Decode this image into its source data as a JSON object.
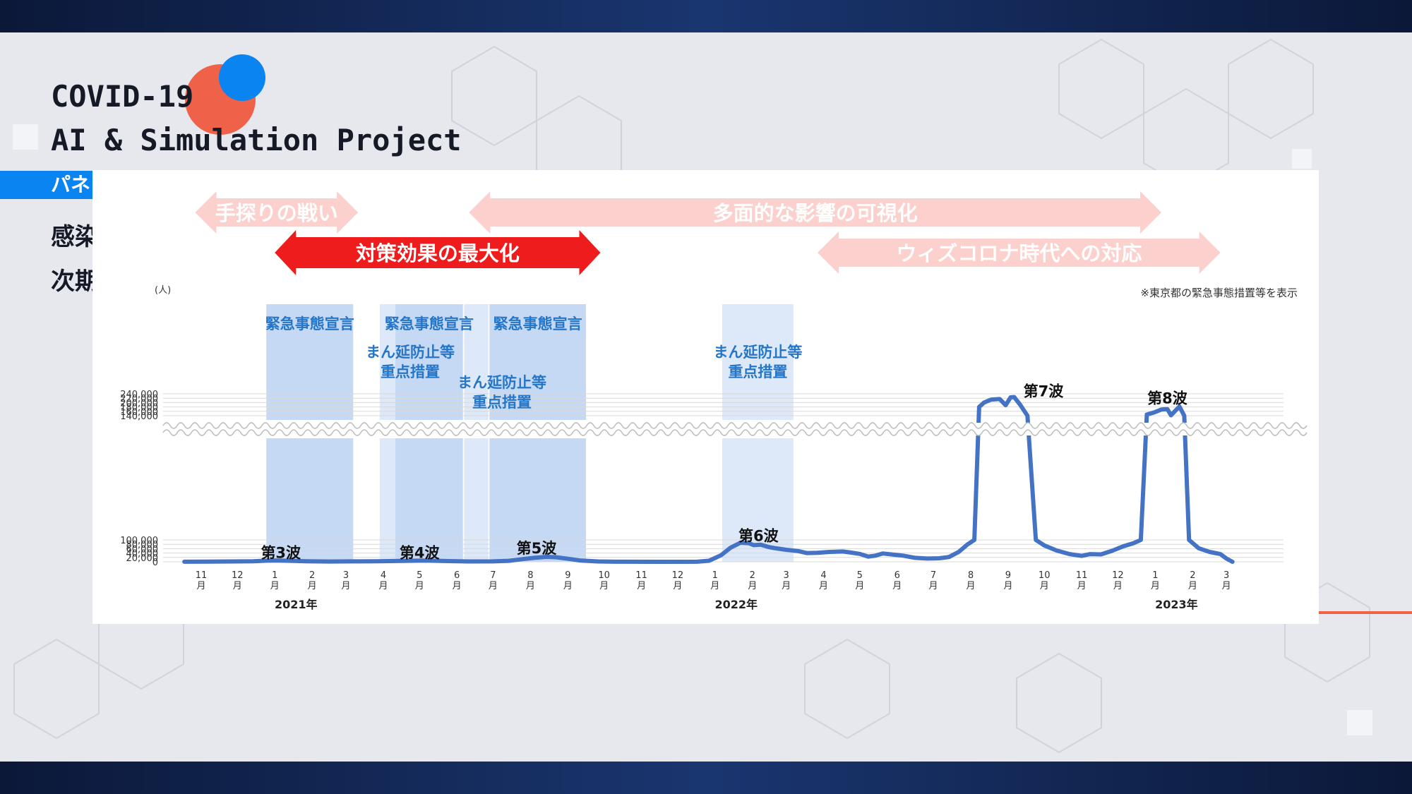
{
  "header": {
    "title_line1": "COVID-19",
    "title_line2": "AI & Simulation Project",
    "tag_label": "パネ",
    "body_line1": "感染",
    "body_line2": "次期"
  },
  "colors": {
    "accent_blue": "#0a84f0",
    "accent_red": "#f0614a",
    "series_line": "#4472c4",
    "emergency_band": "#c5d9f4",
    "priority_band": "#dde8f8",
    "arrow_pink": "#fcd0cc",
    "arrow_red": "#ee1c1c"
  },
  "banners": [
    {
      "text": "手探りの戦い",
      "style": "pink",
      "row": 1,
      "from": "2020-11-10",
      "to": "2021-03-25"
    },
    {
      "text": "多面的な影響の可視化",
      "style": "pink",
      "row": 1,
      "from": "2021-06-25",
      "to": "2023-01-20"
    },
    {
      "text": "対策効果の最大化",
      "style": "red",
      "row": 2,
      "from": "2021-01-15",
      "to": "2021-10-12"
    },
    {
      "text": "ウィズコロナ時代への対応",
      "style": "pink",
      "row": 2,
      "from": "2022-04-10",
      "to": "2023-03-10"
    }
  ],
  "chart_data": {
    "type": "area",
    "unit_label": "(人)",
    "note": "※東京都の緊急事態措置等を表示",
    "y_ticks_lower": [
      0,
      20000,
      40000,
      60000,
      80000,
      100000
    ],
    "y_ticks_upper": [
      140000,
      160000,
      180000,
      200000,
      220000,
      240000
    ],
    "y_tick_labels_lower": [
      "0",
      "20,000",
      "40,000",
      "60,000",
      "80,000",
      "100,000"
    ],
    "y_tick_labels_upper": [
      "140,000",
      "160,000",
      "180,000",
      "200,000",
      "220,000",
      "240,000"
    ],
    "axis_break": [
      100000,
      140000
    ],
    "grid": true,
    "x_month_labels": [
      {
        "date": "2020-11-15",
        "text": "11\n月"
      },
      {
        "date": "2020-12-15",
        "text": "12\n月"
      },
      {
        "date": "2021-01-15",
        "text": "1\n月"
      },
      {
        "date": "2021-02-15",
        "text": "2\n月"
      },
      {
        "date": "2021-03-15",
        "text": "3\n月"
      },
      {
        "date": "2021-04-15",
        "text": "4\n月"
      },
      {
        "date": "2021-05-15",
        "text": "5\n月"
      },
      {
        "date": "2021-06-15",
        "text": "6\n月"
      },
      {
        "date": "2021-07-15",
        "text": "7\n月"
      },
      {
        "date": "2021-08-15",
        "text": "8\n月"
      },
      {
        "date": "2021-09-15",
        "text": "9\n月"
      },
      {
        "date": "2021-10-15",
        "text": "10\n月"
      },
      {
        "date": "2021-11-15",
        "text": "11\n月"
      },
      {
        "date": "2021-12-15",
        "text": "12\n月"
      },
      {
        "date": "2022-01-15",
        "text": "1\n月"
      },
      {
        "date": "2022-02-15",
        "text": "2\n月"
      },
      {
        "date": "2022-03-15",
        "text": "3\n月"
      },
      {
        "date": "2022-04-15",
        "text": "4\n月"
      },
      {
        "date": "2022-05-15",
        "text": "5\n月"
      },
      {
        "date": "2022-06-15",
        "text": "6\n月"
      },
      {
        "date": "2022-07-15",
        "text": "7\n月"
      },
      {
        "date": "2022-08-15",
        "text": "8\n月"
      },
      {
        "date": "2022-09-15",
        "text": "9\n月"
      },
      {
        "date": "2022-10-15",
        "text": "10\n月"
      },
      {
        "date": "2022-11-15",
        "text": "11\n月"
      },
      {
        "date": "2022-12-15",
        "text": "12\n月"
      },
      {
        "date": "2023-01-15",
        "text": "1\n月"
      },
      {
        "date": "2023-02-15",
        "text": "2\n月"
      },
      {
        "date": "2023-03-15",
        "text": "3\n月"
      }
    ],
    "year_labels": [
      {
        "date": "2021-01-15",
        "text": "2021年"
      },
      {
        "date": "2022-01-15",
        "text": "2022年"
      },
      {
        "date": "2023-01-15",
        "text": "2023年"
      }
    ],
    "measure_periods": [
      {
        "label": "緊急事態宣言",
        "type": "emergency",
        "start": "2021-01-08",
        "end": "2021-03-21"
      },
      {
        "label": "まん延防止等\n重点措置",
        "type": "priority",
        "start": "2021-04-12",
        "end": "2021-04-25"
      },
      {
        "label": "緊急事態宣言",
        "type": "emergency",
        "start": "2021-04-25",
        "end": "2021-06-20"
      },
      {
        "label": "まん延防止等\n重点措置",
        "type": "priority",
        "start": "2021-06-21",
        "end": "2021-07-11"
      },
      {
        "label": "緊急事態宣言",
        "type": "emergency",
        "start": "2021-07-12",
        "end": "2021-09-30"
      },
      {
        "label": "まん延防止等\n重点措置",
        "type": "priority",
        "start": "2022-01-21",
        "end": "2022-03-21"
      }
    ],
    "wave_labels": [
      {
        "text": "第3波",
        "date": "2021-01-20",
        "y": 18000
      },
      {
        "text": "第4波",
        "date": "2021-05-15",
        "y": 18000
      },
      {
        "text": "第5波",
        "date": "2021-08-20",
        "y": 38000
      },
      {
        "text": "第6波",
        "date": "2022-02-20",
        "y": 95000
      },
      {
        "text": "第7波",
        "date": "2022-09-15",
        "y": 229000
      },
      {
        "text": "第8波",
        "date": "2023-01-25",
        "y": 196000
      }
    ],
    "series": [
      {
        "points": [
          [
            "2020-11-01",
            200
          ],
          [
            "2020-11-20",
            700
          ],
          [
            "2020-12-10",
            1600
          ],
          [
            "2020-12-28",
            2600
          ],
          [
            "2021-01-05",
            4500
          ],
          [
            "2021-01-15",
            6000
          ],
          [
            "2021-01-25",
            5000
          ],
          [
            "2021-02-10",
            2500
          ],
          [
            "2021-03-01",
            1200
          ],
          [
            "2021-03-20",
            1800
          ],
          [
            "2021-04-10",
            2400
          ],
          [
            "2021-04-25",
            3600
          ],
          [
            "2021-05-10",
            4800
          ],
          [
            "2021-05-20",
            5500
          ],
          [
            "2021-06-05",
            3500
          ],
          [
            "2021-06-25",
            1500
          ],
          [
            "2021-07-15",
            2000
          ],
          [
            "2021-07-28",
            4500
          ],
          [
            "2021-08-08",
            12000
          ],
          [
            "2021-08-18",
            18000
          ],
          [
            "2021-08-28",
            22500
          ],
          [
            "2021-09-05",
            21000
          ],
          [
            "2021-09-15",
            14000
          ],
          [
            "2021-09-25",
            6000
          ],
          [
            "2021-10-10",
            1500
          ],
          [
            "2021-10-25",
            300
          ],
          [
            "2021-12-01",
            100
          ],
          [
            "2021-12-31",
            200
          ],
          [
            "2022-01-10",
            5000
          ],
          [
            "2022-01-20",
            30000
          ],
          [
            "2022-01-28",
            65000
          ],
          [
            "2022-02-05",
            87000
          ],
          [
            "2022-02-12",
            85000
          ],
          [
            "2022-02-16",
            76000
          ],
          [
            "2022-02-22",
            78000
          ],
          [
            "2022-02-28",
            68000
          ],
          [
            "2022-03-05",
            63000
          ],
          [
            "2022-03-15",
            55000
          ],
          [
            "2022-03-25",
            49000
          ],
          [
            "2022-04-01",
            40000
          ],
          [
            "2022-04-10",
            41000
          ],
          [
            "2022-04-20",
            45000
          ],
          [
            "2022-05-01",
            47000
          ],
          [
            "2022-05-08",
            42000
          ],
          [
            "2022-05-15",
            36000
          ],
          [
            "2022-05-22",
            24000
          ],
          [
            "2022-05-28",
            28000
          ],
          [
            "2022-06-03",
            38000
          ],
          [
            "2022-06-10",
            34000
          ],
          [
            "2022-06-20",
            28000
          ],
          [
            "2022-06-30",
            18000
          ],
          [
            "2022-07-10",
            15000
          ],
          [
            "2022-07-20",
            16000
          ],
          [
            "2022-07-28",
            22000
          ],
          [
            "2022-08-05",
            45000
          ],
          [
            "2022-08-12",
            78000
          ],
          [
            "2022-08-18",
            100000
          ],
          [
            "2022-08-22",
            180000
          ],
          [
            "2022-08-26",
            200000
          ],
          [
            "2022-09-01",
            214000
          ],
          [
            "2022-09-08",
            216000
          ],
          [
            "2022-09-13",
            188000
          ],
          [
            "2022-09-17",
            224000
          ],
          [
            "2022-09-20",
            225000
          ],
          [
            "2022-09-25",
            190000
          ],
          [
            "2022-10-01",
            140000
          ],
          [
            "2022-10-08",
            100000
          ],
          [
            "2022-10-15",
            75000
          ],
          [
            "2022-10-25",
            52000
          ],
          [
            "2022-11-05",
            35000
          ],
          [
            "2022-11-15",
            27000
          ],
          [
            "2022-11-22",
            35000
          ],
          [
            "2022-12-01",
            34000
          ],
          [
            "2022-12-10",
            50000
          ],
          [
            "2022-12-20",
            72000
          ],
          [
            "2022-12-28",
            85000
          ],
          [
            "2023-01-03",
            100000
          ],
          [
            "2023-01-08",
            145000
          ],
          [
            "2023-01-14",
            155000
          ],
          [
            "2023-01-20",
            168000
          ],
          [
            "2023-01-25",
            170000
          ],
          [
            "2023-01-28",
            142000
          ],
          [
            "2023-02-01",
            165000
          ],
          [
            "2023-02-04",
            182000
          ],
          [
            "2023-02-08",
            140000
          ],
          [
            "2023-02-12",
            100000
          ],
          [
            "2023-02-20",
            62000
          ],
          [
            "2023-03-01",
            45000
          ],
          [
            "2023-03-10",
            35000
          ],
          [
            "2023-03-15",
            15000
          ],
          [
            "2023-03-20",
            0
          ]
        ]
      }
    ]
  }
}
